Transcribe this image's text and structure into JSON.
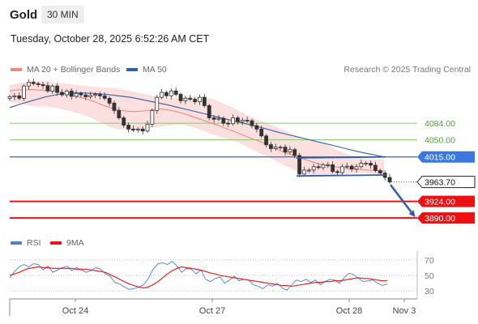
{
  "header": {
    "symbol": "Gold",
    "timeframe": "30 MIN",
    "datetime": "Tuesday, October 28, 2025 6:52:26 AM CET"
  },
  "legend": {
    "ma20_label": "MA 20 + Bollinger Bands",
    "ma50_label": "MA 50",
    "credit": "Research © 2025 Trading Central",
    "rsi_label": "RSI",
    "ma9_label": "9MA"
  },
  "colors": {
    "ma20": "#f08a80",
    "bollinger_fill": "#fcdada",
    "ma50": "#2f5fa8",
    "candle": "#333333",
    "resistance": "#3a78e0",
    "support": "#ee1111",
    "target_green": "#88c870",
    "arrow": "#2f5fa8",
    "rsi": "#4a7fd0",
    "rsi_ma": "#ee1111"
  },
  "chart_data": [
    {
      "type": "candlestick",
      "x_labels": [
        "Oct 24",
        "Oct 27",
        "Oct 28",
        "Nov 3"
      ],
      "ylim": [
        3862,
        4177
      ],
      "price_levels": [
        {
          "label": "4084.00",
          "value": 4084,
          "style": "green-line"
        },
        {
          "label": "4050.00",
          "value": 4050,
          "style": "green-line"
        },
        {
          "label": "4015.00",
          "value": 4015,
          "style": "blue-resistance"
        },
        {
          "label": "3963.70",
          "value": 3963.7,
          "style": "last-price"
        },
        {
          "label": "3924.00",
          "value": 3924,
          "style": "red-support"
        },
        {
          "label": "3890.00",
          "value": 3890,
          "style": "red-support"
        }
      ],
      "close_series": [
        4138,
        4140,
        4135,
        4160,
        4168,
        4165,
        4163,
        4161,
        4150,
        4160,
        4147,
        4142,
        4150,
        4139,
        4145,
        4142,
        4138,
        4141,
        4143,
        4140,
        4135,
        4125,
        4110,
        4095,
        4080,
        4072,
        4070,
        4072,
        4068,
        4082,
        4110,
        4137,
        4147,
        4140,
        4150,
        4143,
        4130,
        4135,
        4133,
        4128,
        4137,
        4120,
        4095,
        4092,
        4094,
        4084,
        4083,
        4095,
        4087,
        4090,
        4089,
        4079,
        4072,
        4058,
        4040,
        4032,
        4035,
        4035,
        4025,
        4030,
        4018,
        3980,
        3988,
        3988,
        3995,
        3993,
        3999,
        3999,
        3985,
        3983,
        3995,
        3996,
        3990,
        3995,
        4002,
        4002,
        3998,
        3987,
        3982,
        3973,
        3964
      ],
      "ma20_series": [
        4150,
        4152,
        4152,
        4153,
        4152,
        4151,
        4150,
        4148,
        4144,
        4140,
        4137,
        4133,
        4128,
        4122,
        4117,
        4112,
        4110,
        4108,
        4108,
        4109,
        4111,
        4113,
        4112,
        4110,
        4106,
        4102,
        4097,
        4092,
        4087,
        4082,
        4077,
        4071,
        4066,
        4060,
        4054,
        4049,
        4043,
        4036,
        4030,
        4024,
        4019,
        4014,
        4009,
        4004,
        4000,
        3997,
        3995,
        3993,
        3991,
        3990,
        3989,
        3988,
        3987,
        3986
      ],
      "ma50_series": [
        4116,
        4124,
        4131,
        4138,
        4143,
        4146,
        4146,
        4145,
        4143,
        4140,
        4137,
        4132,
        4127,
        4122,
        4116,
        4110,
        4104,
        4098,
        4092,
        4086,
        4080,
        4074,
        4067,
        4061,
        4055,
        4049,
        4043,
        4037,
        4031,
        4025,
        4020,
        4015
      ],
      "bollinger_upper": [
        4162,
        4166,
        4169,
        4170,
        4169,
        4167,
        4165,
        4162,
        4160,
        4158,
        4157,
        4156,
        4152,
        4148,
        4144,
        4140,
        4137,
        4136,
        4137,
        4139,
        4138,
        4135,
        4127,
        4118,
        4108,
        4098,
        4090,
        4082,
        4075,
        4066,
        4058,
        4050,
        4045,
        4040,
        4030,
        4022,
        4016,
        4011,
        4010,
        4010
      ],
      "bollinger_lower": [
        4128,
        4124,
        4120,
        4118,
        4118,
        4115,
        4110,
        4105,
        4099,
        4090,
        4080,
        4073,
        4070,
        4070,
        4072,
        4075,
        4078,
        4080,
        4081,
        4076,
        4070,
        4062,
        4056,
        4050,
        4043,
        4033,
        4023,
        4014,
        4004,
        3994,
        3986,
        3980,
        3977,
        3977,
        3978,
        3980,
        3982,
        3982,
        3980,
        3978
      ]
    },
    {
      "type": "line",
      "title": "RSI",
      "ylim": [
        24,
        76
      ],
      "y_ticks": [
        70,
        50,
        30
      ],
      "series": [
        {
          "name": "RSI",
          "values": [
            47,
            55,
            61,
            64,
            61,
            65,
            64,
            57,
            62,
            54,
            57,
            60,
            62,
            56,
            60,
            57,
            54,
            56,
            60,
            58,
            52,
            49,
            41,
            39,
            35,
            32,
            33,
            35,
            38,
            46,
            58,
            65,
            66,
            64,
            68,
            62,
            54,
            59,
            58,
            52,
            57,
            45,
            42,
            46,
            48,
            40,
            44,
            49,
            43,
            45,
            44,
            38,
            36,
            33,
            38,
            36,
            40,
            34,
            31,
            38,
            44,
            42,
            45,
            41,
            44,
            38,
            42,
            45,
            44,
            40,
            47,
            53,
            51,
            46,
            42,
            43,
            44,
            40,
            37,
            39
          ]
        },
        {
          "name": "9MA",
          "values": [
            50,
            52,
            54,
            57,
            59,
            60,
            61,
            60,
            60,
            59,
            59,
            59,
            59,
            59,
            58,
            58,
            58,
            57,
            56,
            55,
            54,
            51,
            48,
            45,
            42,
            39,
            37,
            35,
            34,
            35,
            38,
            42,
            47,
            52,
            56,
            59,
            61,
            60,
            59,
            58,
            57,
            55,
            53,
            52,
            50,
            49,
            48,
            47,
            46,
            45,
            44,
            43,
            42,
            41,
            40,
            39,
            38,
            37,
            37,
            36,
            37,
            38,
            39,
            40,
            41,
            41,
            42,
            42,
            43,
            43,
            44,
            45,
            46,
            47,
            46,
            46,
            45,
            44,
            43,
            43
          ]
        }
      ]
    }
  ]
}
